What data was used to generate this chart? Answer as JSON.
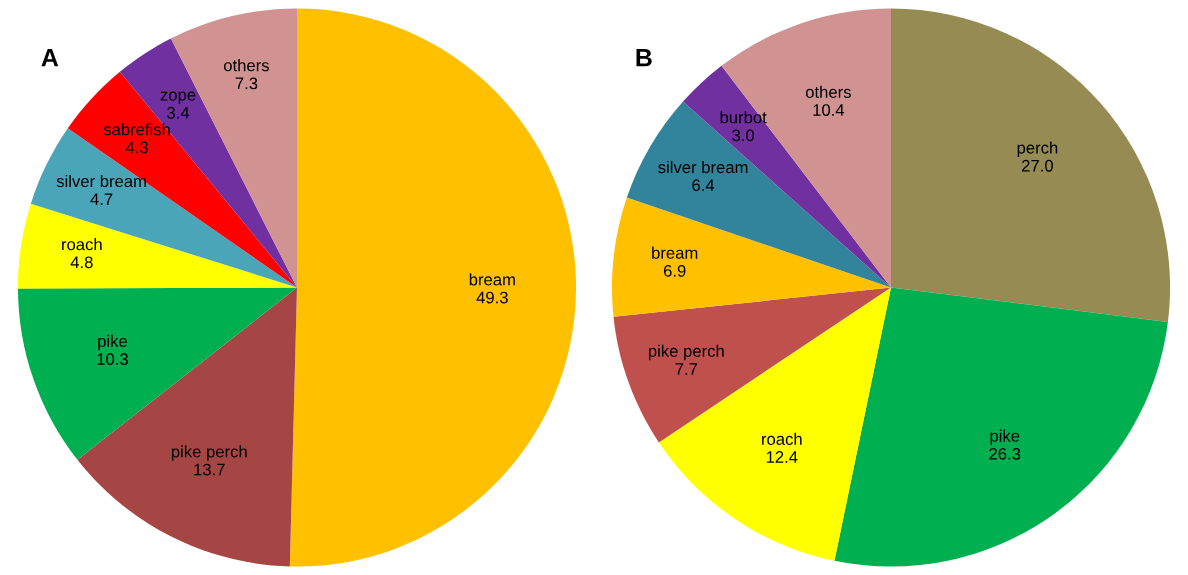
{
  "chart_data": [
    {
      "type": "pie",
      "title": "A",
      "categories": [
        "bream",
        "pike perch",
        "pike",
        "roach",
        "silver bream",
        "sabrefish",
        "zope",
        "others"
      ],
      "values": [
        49.3,
        13.7,
        10.3,
        4.8,
        4.7,
        4.3,
        3.4,
        7.3
      ],
      "value_labels": [
        "49.3",
        "13.7",
        "10.3",
        "4.8",
        "4.7",
        "4.3",
        "3.4",
        "7.3"
      ],
      "colors": [
        "#ffc000",
        "#a64644",
        "#00b050",
        "#ffff00",
        "#4ba5b9",
        "#ff0000",
        "#7030a0",
        "#d09392"
      ]
    },
    {
      "type": "pie",
      "title": "B",
      "categories": [
        "perch",
        "pike",
        "roach",
        "pike perch",
        "bream",
        "silver bream",
        "burbot",
        "others"
      ],
      "values": [
        27.0,
        26.3,
        12.4,
        7.7,
        6.9,
        6.4,
        3.0,
        10.4
      ],
      "value_labels": [
        "27.0",
        "26.3",
        "12.4",
        "7.7",
        "6.9",
        "6.4",
        "3.0",
        "10.4"
      ],
      "colors": [
        "#958b53",
        "#00b050",
        "#ffff00",
        "#c0504d",
        "#ffc000",
        "#31849b",
        "#7030a0",
        "#d09392"
      ]
    }
  ]
}
